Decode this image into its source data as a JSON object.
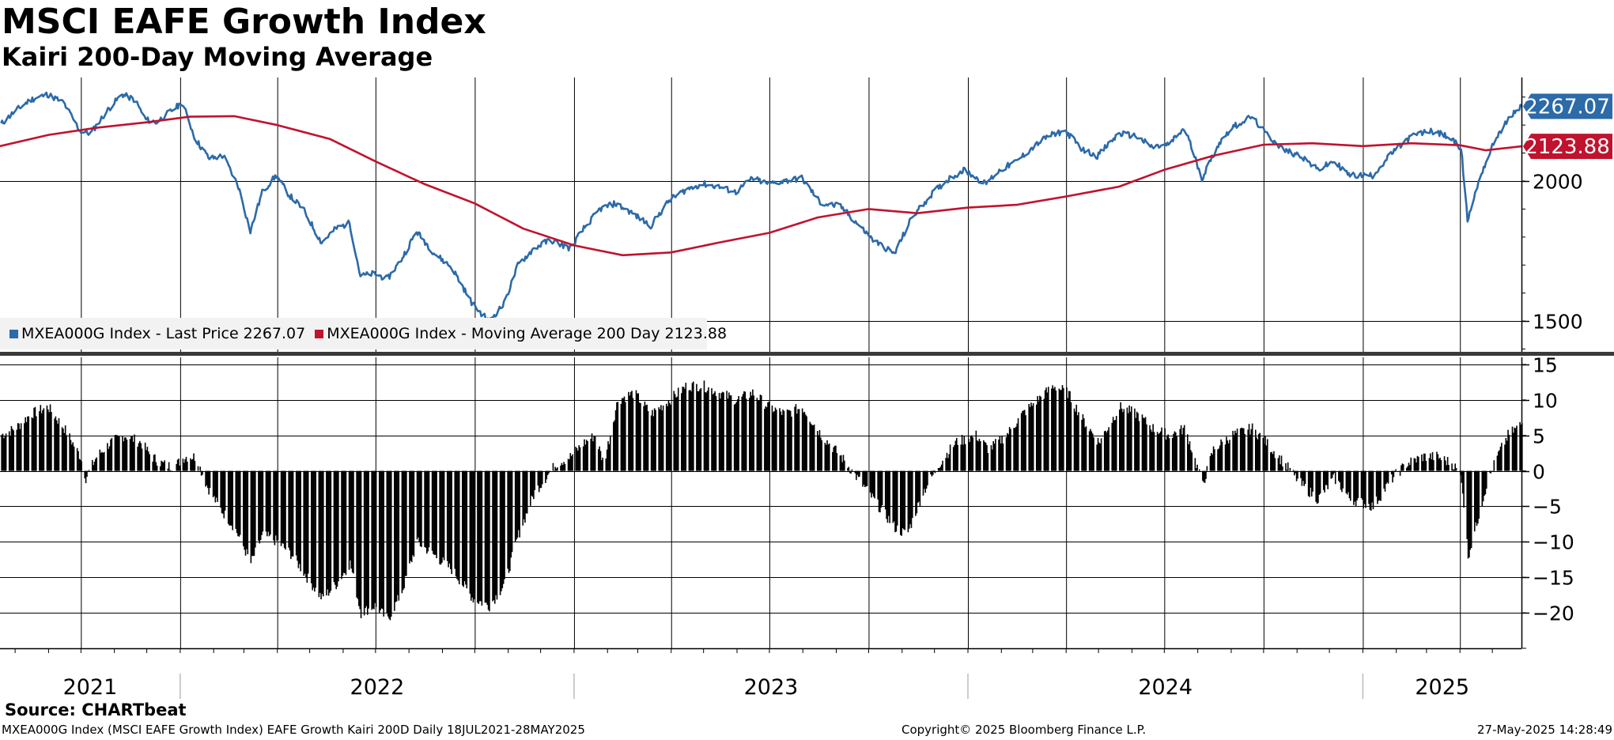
{
  "header": {
    "title": "MSCI EAFE Growth Index",
    "subtitle": "Kairi 200-Day Moving Average"
  },
  "legend": {
    "items": [
      {
        "label": "MXEA000G Index - Last Price",
        "value": "2267.07",
        "color": "#2c6aa8"
      },
      {
        "label": "MXEA000G Index - Moving Average 200 Day",
        "value": "2123.88",
        "color": "#c0132e"
      }
    ]
  },
  "source": "Source: CHARTbeat",
  "footer": {
    "left": "MXEA000G Index (MSCI EAFE Growth Index) EAFE Growth Kairi 200D  Daily 18JUL2021-28MAY2025",
    "center": "Copyright© 2025 Bloomberg Finance L.P.",
    "right": "27-May-2025 14:28:49"
  },
  "chart_data": [
    {
      "type": "line",
      "panel": "top",
      "x_range": [
        "2021-07-18",
        "2025-05-28"
      ],
      "ylim": [
        1390,
        2370
      ],
      "y_ticks": [
        1500,
        2000
      ],
      "grid": true,
      "legend_position": "bottom-left",
      "last_value_labels": [
        {
          "series": 0,
          "text": "2267.07",
          "color": "#2c6aa8"
        },
        {
          "series": 1,
          "text": "2123.88",
          "color": "#c0132e"
        }
      ],
      "series": [
        {
          "name": "MXEA000G Index - Last Price",
          "color": "#2c6aa8",
          "points": [
            [
              "2021-07-18",
              2200
            ],
            [
              "2021-08-01",
              2250
            ],
            [
              "2021-08-15",
              2290
            ],
            [
              "2021-08-31",
              2310
            ],
            [
              "2021-09-15",
              2280
            ],
            [
              "2021-09-30",
              2180
            ],
            [
              "2021-10-10",
              2170
            ],
            [
              "2021-10-25",
              2250
            ],
            [
              "2021-11-08",
              2310
            ],
            [
              "2021-11-20",
              2290
            ],
            [
              "2021-11-30",
              2220
            ],
            [
              "2021-12-10",
              2210
            ],
            [
              "2021-12-20",
              2240
            ],
            [
              "2022-01-03",
              2280
            ],
            [
              "2022-01-15",
              2150
            ],
            [
              "2022-01-28",
              2080
            ],
            [
              "2022-02-10",
              2090
            ],
            [
              "2022-02-24",
              1980
            ],
            [
              "2022-03-07",
              1820
            ],
            [
              "2022-03-18",
              1960
            ],
            [
              "2022-03-31",
              2020
            ],
            [
              "2022-04-12",
              1950
            ],
            [
              "2022-04-25",
              1900
            ],
            [
              "2022-05-12",
              1780
            ],
            [
              "2022-05-25",
              1830
            ],
            [
              "2022-06-07",
              1850
            ],
            [
              "2022-06-17",
              1660
            ],
            [
              "2022-06-30",
              1670
            ],
            [
              "2022-07-12",
              1650
            ],
            [
              "2022-07-25",
              1720
            ],
            [
              "2022-08-08",
              1820
            ],
            [
              "2022-08-25",
              1740
            ],
            [
              "2022-09-10",
              1690
            ],
            [
              "2022-09-29",
              1560
            ],
            [
              "2022-10-14",
              1500
            ],
            [
              "2022-10-28",
              1560
            ],
            [
              "2022-11-10",
              1700
            ],
            [
              "2022-11-25",
              1760
            ],
            [
              "2022-12-10",
              1790
            ],
            [
              "2022-12-28",
              1760
            ],
            [
              "2023-01-10",
              1830
            ],
            [
              "2023-01-25",
              1900
            ],
            [
              "2023-02-08",
              1920
            ],
            [
              "2023-02-22",
              1890
            ],
            [
              "2023-03-13",
              1840
            ],
            [
              "2023-03-30",
              1930
            ],
            [
              "2023-04-15",
              1970
            ],
            [
              "2023-04-30",
              1990
            ],
            [
              "2023-05-15",
              1980
            ],
            [
              "2023-05-31",
              1960
            ],
            [
              "2023-06-15",
              2010
            ],
            [
              "2023-06-30",
              1990
            ],
            [
              "2023-07-15",
              2000
            ],
            [
              "2023-07-31",
              2010
            ],
            [
              "2023-08-18",
              1920
            ],
            [
              "2023-09-05",
              1910
            ],
            [
              "2023-09-20",
              1850
            ],
            [
              "2023-10-05",
              1790
            ],
            [
              "2023-10-25",
              1740
            ],
            [
              "2023-11-10",
              1870
            ],
            [
              "2023-11-30",
              1960
            ],
            [
              "2023-12-15",
              2010
            ],
            [
              "2023-12-29",
              2040
            ],
            [
              "2024-01-17",
              1990
            ],
            [
              "2024-01-31",
              2040
            ],
            [
              "2024-02-15",
              2070
            ],
            [
              "2024-03-01",
              2120
            ],
            [
              "2024-03-15",
              2160
            ],
            [
              "2024-03-31",
              2180
            ],
            [
              "2024-04-17",
              2110
            ],
            [
              "2024-04-30",
              2090
            ],
            [
              "2024-05-20",
              2170
            ],
            [
              "2024-06-05",
              2160
            ],
            [
              "2024-06-20",
              2120
            ],
            [
              "2024-07-05",
              2130
            ],
            [
              "2024-07-20",
              2190
            ],
            [
              "2024-08-05",
              2010
            ],
            [
              "2024-08-20",
              2130
            ],
            [
              "2024-09-01",
              2190
            ],
            [
              "2024-09-20",
              2230
            ],
            [
              "2024-10-03",
              2170
            ],
            [
              "2024-10-20",
              2110
            ],
            [
              "2024-11-05",
              2090
            ],
            [
              "2024-11-20",
              2040
            ],
            [
              "2024-12-05",
              2070
            ],
            [
              "2024-12-20",
              2020
            ],
            [
              "2025-01-10",
              2020
            ],
            [
              "2025-01-28",
              2100
            ],
            [
              "2025-02-15",
              2160
            ],
            [
              "2025-03-05",
              2180
            ],
            [
              "2025-03-20",
              2160
            ],
            [
              "2025-04-02",
              2120
            ],
            [
              "2025-04-08",
              1860
            ],
            [
              "2025-04-20",
              2020
            ],
            [
              "2025-05-05",
              2160
            ],
            [
              "2025-05-20",
              2240
            ],
            [
              "2025-05-28",
              2267.07
            ]
          ]
        },
        {
          "name": "MXEA000G Index - Moving Average 200 Day",
          "color": "#c0132e",
          "points": [
            [
              "2021-07-18",
              2125
            ],
            [
              "2021-09-01",
              2165
            ],
            [
              "2021-10-15",
              2190
            ],
            [
              "2021-12-01",
              2210
            ],
            [
              "2022-01-10",
              2230
            ],
            [
              "2022-02-20",
              2232
            ],
            [
              "2022-04-01",
              2200
            ],
            [
              "2022-05-20",
              2150
            ],
            [
              "2022-07-01",
              2070
            ],
            [
              "2022-08-15",
              1990
            ],
            [
              "2022-10-01",
              1920
            ],
            [
              "2022-11-15",
              1830
            ],
            [
              "2023-01-01",
              1770
            ],
            [
              "2023-02-15",
              1735
            ],
            [
              "2023-04-01",
              1745
            ],
            [
              "2023-05-15",
              1780
            ],
            [
              "2023-07-01",
              1815
            ],
            [
              "2023-08-15",
              1870
            ],
            [
              "2023-10-01",
              1900
            ],
            [
              "2023-11-15",
              1885
            ],
            [
              "2024-01-01",
              1905
            ],
            [
              "2024-02-15",
              1915
            ],
            [
              "2024-04-01",
              1945
            ],
            [
              "2024-05-20",
              1980
            ],
            [
              "2024-07-01",
              2040
            ],
            [
              "2024-08-15",
              2090
            ],
            [
              "2024-10-01",
              2130
            ],
            [
              "2024-11-15",
              2135
            ],
            [
              "2025-01-01",
              2125
            ],
            [
              "2025-02-15",
              2135
            ],
            [
              "2025-04-01",
              2128
            ],
            [
              "2025-04-25",
              2110
            ],
            [
              "2025-05-28",
              2123.88
            ]
          ]
        }
      ]
    },
    {
      "type": "bar",
      "panel": "bottom",
      "name": "EAFE Growth Kairi 200D",
      "x_range": [
        "2021-07-18",
        "2025-05-28"
      ],
      "ylim": [
        -25,
        16
      ],
      "y_ticks": [
        15,
        10,
        5,
        0,
        -5,
        -10,
        -15,
        -20
      ],
      "grid": true,
      "x_tick_labels": [
        "2021",
        "2022",
        "2023",
        "2024",
        "2025"
      ],
      "points": [
        [
          "2021-07-18",
          5
        ],
        [
          "2021-08-01",
          6
        ],
        [
          "2021-08-15",
          8
        ],
        [
          "2021-08-31",
          9
        ],
        [
          "2021-09-15",
          6
        ],
        [
          "2021-09-30",
          2
        ],
        [
          "2021-10-05",
          -1
        ],
        [
          "2021-10-15",
          2
        ],
        [
          "2021-10-28",
          4
        ],
        [
          "2021-11-10",
          5
        ],
        [
          "2021-11-25",
          4
        ],
        [
          "2021-12-05",
          2
        ],
        [
          "2021-12-15",
          1
        ],
        [
          "2021-12-25",
          0.5
        ],
        [
          "2022-01-05",
          2
        ],
        [
          "2022-01-15",
          2
        ],
        [
          "2022-01-25",
          -2
        ],
        [
          "2022-02-05",
          -5
        ],
        [
          "2022-02-20",
          -8
        ],
        [
          "2022-03-07",
          -13
        ],
        [
          "2022-03-18",
          -9
        ],
        [
          "2022-04-01",
          -10
        ],
        [
          "2022-04-15",
          -12
        ],
        [
          "2022-04-28",
          -15
        ],
        [
          "2022-05-12",
          -18
        ],
        [
          "2022-05-25",
          -16
        ],
        [
          "2022-06-07",
          -13
        ],
        [
          "2022-06-17",
          -20
        ],
        [
          "2022-06-30",
          -19
        ],
        [
          "2022-07-12",
          -21
        ],
        [
          "2022-07-25",
          -17
        ],
        [
          "2022-08-08",
          -10
        ],
        [
          "2022-08-25",
          -12
        ],
        [
          "2022-09-10",
          -14
        ],
        [
          "2022-09-29",
          -18
        ],
        [
          "2022-10-14",
          -19
        ],
        [
          "2022-10-28",
          -16
        ],
        [
          "2022-11-10",
          -9
        ],
        [
          "2022-11-25",
          -3
        ],
        [
          "2022-12-05",
          -1
        ],
        [
          "2022-12-15",
          1
        ],
        [
          "2022-12-28",
          2
        ],
        [
          "2023-01-10",
          4
        ],
        [
          "2023-01-20",
          5
        ],
        [
          "2023-01-28",
          1
        ],
        [
          "2023-02-10",
          10
        ],
        [
          "2023-02-25",
          11
        ],
        [
          "2023-03-13",
          8
        ],
        [
          "2023-03-30",
          10
        ],
        [
          "2023-04-15",
          12
        ],
        [
          "2023-04-30",
          12
        ],
        [
          "2023-05-15",
          11
        ],
        [
          "2023-05-31",
          10
        ],
        [
          "2023-06-15",
          11
        ],
        [
          "2023-06-30",
          9
        ],
        [
          "2023-07-15",
          8
        ],
        [
          "2023-07-31",
          9
        ],
        [
          "2023-08-18",
          5
        ],
        [
          "2023-09-05",
          2
        ],
        [
          "2023-09-15",
          0
        ],
        [
          "2023-09-25",
          -2
        ],
        [
          "2023-10-10",
          -5
        ],
        [
          "2023-10-25",
          -8
        ],
        [
          "2023-11-05",
          -9
        ],
        [
          "2023-11-20",
          -3
        ],
        [
          "2023-12-05",
          1
        ],
        [
          "2023-12-20",
          4
        ],
        [
          "2024-01-08",
          5
        ],
        [
          "2024-01-20",
          3
        ],
        [
          "2024-02-05",
          5
        ],
        [
          "2024-02-20",
          8
        ],
        [
          "2024-03-05",
          10
        ],
        [
          "2024-03-20",
          12
        ],
        [
          "2024-04-02",
          11
        ],
        [
          "2024-04-17",
          7
        ],
        [
          "2024-05-01",
          4
        ],
        [
          "2024-05-20",
          9
        ],
        [
          "2024-06-05",
          8
        ],
        [
          "2024-06-20",
          6
        ],
        [
          "2024-07-05",
          5
        ],
        [
          "2024-07-20",
          6
        ],
        [
          "2024-08-05",
          -2
        ],
        [
          "2024-08-15",
          3
        ],
        [
          "2024-09-01",
          5
        ],
        [
          "2024-09-20",
          6
        ],
        [
          "2024-10-03",
          4
        ],
        [
          "2024-10-20",
          1
        ],
        [
          "2024-11-05",
          -2
        ],
        [
          "2024-11-20",
          -4
        ],
        [
          "2024-12-05",
          -1
        ],
        [
          "2024-12-20",
          -4
        ],
        [
          "2025-01-10",
          -5
        ],
        [
          "2025-01-28",
          -1
        ],
        [
          "2025-02-10",
          1
        ],
        [
          "2025-02-25",
          2
        ],
        [
          "2025-03-10",
          2
        ],
        [
          "2025-03-25",
          1
        ],
        [
          "2025-04-02",
          -1
        ],
        [
          "2025-04-08",
          -12
        ],
        [
          "2025-04-15",
          -8
        ],
        [
          "2025-04-25",
          -2
        ],
        [
          "2025-05-05",
          2
        ],
        [
          "2025-05-15",
          5
        ],
        [
          "2025-05-28",
          6.7
        ]
      ]
    }
  ]
}
